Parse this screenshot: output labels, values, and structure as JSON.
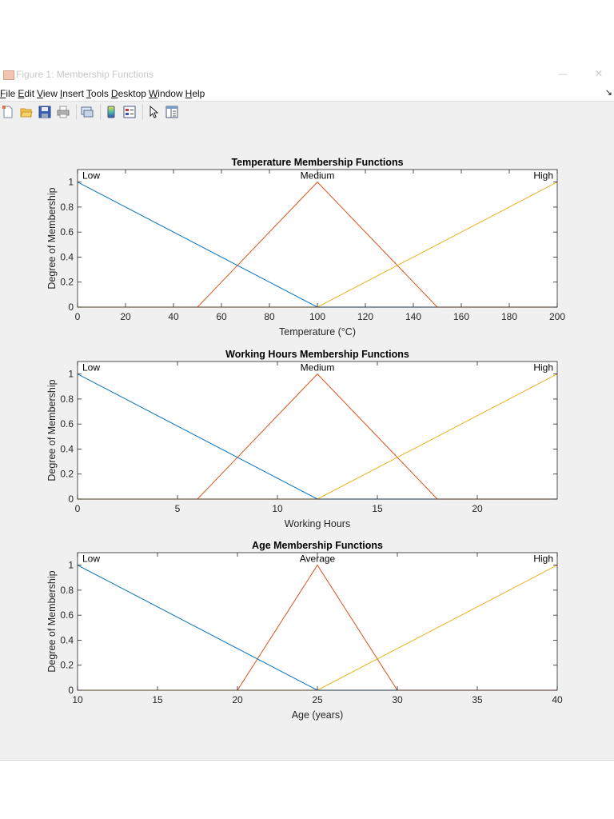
{
  "window": {
    "title": "Figure 1: Membership Functions",
    "minimize_glyph": "—",
    "close_glyph": "✕",
    "dock_glyph": "↘"
  },
  "menu": {
    "items": [
      {
        "label": "File",
        "accel": "F",
        "rest": "ile"
      },
      {
        "label": "Edit",
        "accel": "E",
        "rest": "dit"
      },
      {
        "label": "View",
        "accel": "V",
        "rest": "iew"
      },
      {
        "label": "Insert",
        "accel": "I",
        "rest": "nsert"
      },
      {
        "label": "Tools",
        "accel": "T",
        "rest": "ools"
      },
      {
        "label": "Desktop",
        "accel": "D",
        "rest": "esktop"
      },
      {
        "label": "Window",
        "accel": "W",
        "rest": "indow"
      },
      {
        "label": "Help",
        "accel": "H",
        "rest": "elp"
      }
    ]
  },
  "toolbar": {
    "buttons": [
      {
        "name": "new-figure",
        "icon": "new-figure-icon"
      },
      {
        "name": "open-file",
        "icon": "folder-open-icon"
      },
      {
        "name": "save-figure",
        "icon": "save-icon"
      },
      {
        "name": "print-figure",
        "icon": "print-icon"
      },
      {
        "name": "link-plot",
        "icon": "link-plot-icon"
      },
      {
        "name": "insert-colorbar",
        "icon": "colorbar-icon"
      },
      {
        "name": "insert-legend",
        "icon": "legend-icon"
      },
      {
        "name": "edit-plot",
        "icon": "pointer-icon"
      },
      {
        "name": "property-inspector",
        "icon": "plot-browser-icon"
      }
    ]
  },
  "colors": {
    "low": "#0072BD",
    "medium": "#D95319",
    "high": "#EDB120",
    "figure_bg": "#f0f0f0",
    "axes_bg": "#ffffff",
    "axis": "#262626",
    "tick_label": "#262626"
  },
  "chart_data": [
    {
      "type": "line",
      "title": "Temperature Membership Functions",
      "xlabel": "Temperature (°C)",
      "ylabel": "Degree of Membership",
      "xlim": [
        0,
        200
      ],
      "ylim": [
        0,
        1.1
      ],
      "xticks": [
        0,
        20,
        40,
        60,
        80,
        100,
        120,
        140,
        160,
        180,
        200
      ],
      "yticks": [
        0,
        0.2,
        0.4,
        0.6,
        0.8,
        1
      ],
      "ytick_labels": [
        "0",
        "0.2",
        "0.4",
        "0.6",
        "0.8",
        "1"
      ],
      "grid": false,
      "series": [
        {
          "name": "Low",
          "color": "#0072BD",
          "x": [
            0,
            100,
            200
          ],
          "y": [
            1,
            0,
            0
          ]
        },
        {
          "name": "Medium",
          "color": "#D95319",
          "x": [
            0,
            50,
            100,
            150,
            200
          ],
          "y": [
            0,
            0,
            1,
            0,
            0
          ]
        },
        {
          "name": "High",
          "color": "#EDB120",
          "x": [
            0,
            100,
            200
          ],
          "y": [
            0,
            0,
            1
          ]
        }
      ],
      "annotations": [
        {
          "text": "Low",
          "x": 0,
          "anchor": "start"
        },
        {
          "text": "Medium",
          "x": 100,
          "anchor": "middle"
        },
        {
          "text": "High",
          "x": 200,
          "anchor": "end"
        }
      ]
    },
    {
      "type": "line",
      "title": "Working Hours Membership Functions",
      "xlabel": "Working Hours",
      "ylabel": "Degree of Membership",
      "xlim": [
        0,
        24
      ],
      "ylim": [
        0,
        1.1
      ],
      "xticks": [
        0,
        5,
        10,
        15,
        20
      ],
      "yticks": [
        0,
        0.2,
        0.4,
        0.6,
        0.8,
        1
      ],
      "ytick_labels": [
        "0",
        "0.2",
        "0.4",
        "0.6",
        "0.8",
        "1"
      ],
      "grid": false,
      "series": [
        {
          "name": "Low",
          "color": "#0072BD",
          "x": [
            0,
            12,
            24
          ],
          "y": [
            1,
            0,
            0
          ]
        },
        {
          "name": "Medium",
          "color": "#D95319",
          "x": [
            0,
            6,
            12,
            18,
            24
          ],
          "y": [
            0,
            0,
            1,
            0,
            0
          ]
        },
        {
          "name": "High",
          "color": "#EDB120",
          "x": [
            0,
            12,
            24
          ],
          "y": [
            0,
            0,
            1
          ]
        }
      ],
      "annotations": [
        {
          "text": "Low",
          "x": 0,
          "anchor": "start"
        },
        {
          "text": "Medium",
          "x": 12,
          "anchor": "middle"
        },
        {
          "text": "High",
          "x": 24,
          "anchor": "end"
        }
      ]
    },
    {
      "type": "line",
      "title": "Age Membership Functions",
      "xlabel": "Age (years)",
      "ylabel": "Degree of Membership",
      "xlim": [
        10,
        40
      ],
      "ylim": [
        0,
        1.1
      ],
      "xticks": [
        10,
        15,
        20,
        25,
        30,
        35,
        40
      ],
      "yticks": [
        0,
        0.2,
        0.4,
        0.6,
        0.8,
        1
      ],
      "ytick_labels": [
        "0",
        "0.2",
        "0.4",
        "0.6",
        "0.8",
        "1"
      ],
      "grid": false,
      "series": [
        {
          "name": "Low",
          "color": "#0072BD",
          "x": [
            10,
            25,
            40
          ],
          "y": [
            1,
            0,
            0
          ]
        },
        {
          "name": "Average",
          "color": "#D95319",
          "x": [
            10,
            20,
            25,
            30,
            40
          ],
          "y": [
            0,
            0,
            1,
            0,
            0
          ]
        },
        {
          "name": "High",
          "color": "#EDB120",
          "x": [
            10,
            25,
            40
          ],
          "y": [
            0,
            0,
            1
          ]
        }
      ],
      "annotations": [
        {
          "text": "Low",
          "x": 10,
          "anchor": "start"
        },
        {
          "text": "Average",
          "x": 25,
          "anchor": "middle"
        },
        {
          "text": "High",
          "x": 40,
          "anchor": "end"
        }
      ]
    }
  ]
}
